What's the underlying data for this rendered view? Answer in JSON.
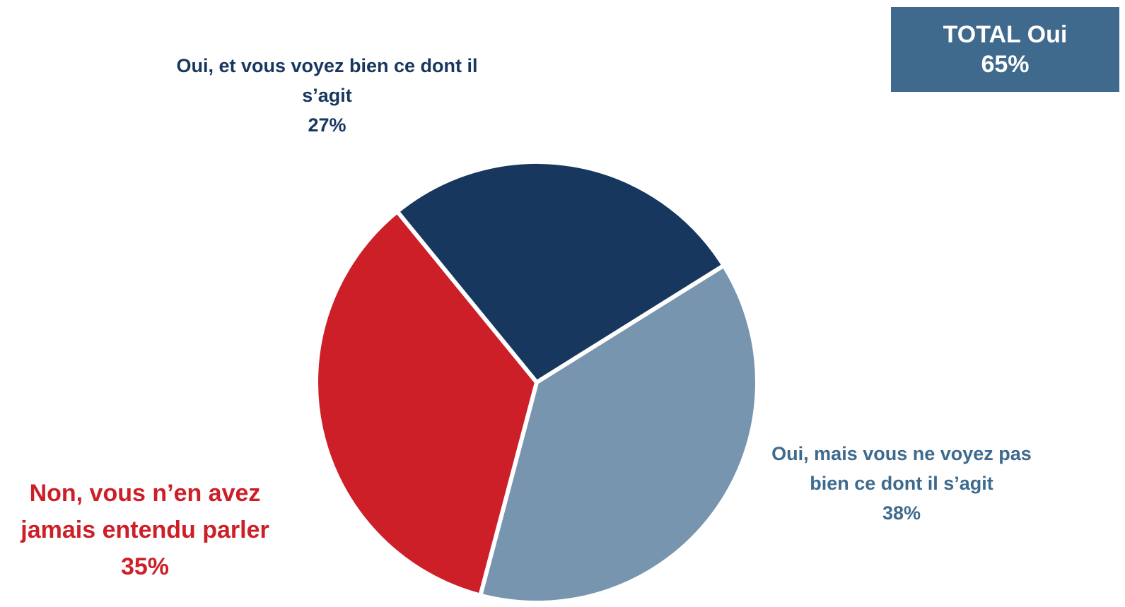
{
  "total": {
    "label": "TOTAL Oui",
    "value": "65%",
    "color": "#3f6a8d"
  },
  "chart_data": {
    "type": "pie",
    "start_angle_deg": 58,
    "slices": [
      {
        "name_line1": "Oui, mais vous ne voyez pas",
        "name_line2": "bien ce dont il s’agit",
        "percent_label": "38%",
        "value": 38,
        "color": "#7795ae",
        "label_color": "#3e6a8e"
      },
      {
        "name_line1": "Non, vous n’en avez",
        "name_line2": "jamais entendu parler",
        "percent_label": "35%",
        "value": 35,
        "color": "#cc1f27",
        "label_color": "#cc1f27"
      },
      {
        "name_line1": "Oui, et vous voyez bien ce dont il",
        "name_line2": "s’agit",
        "percent_label": "27%",
        "value": 27,
        "color": "#17375e",
        "label_color": "#17375e"
      }
    ]
  }
}
